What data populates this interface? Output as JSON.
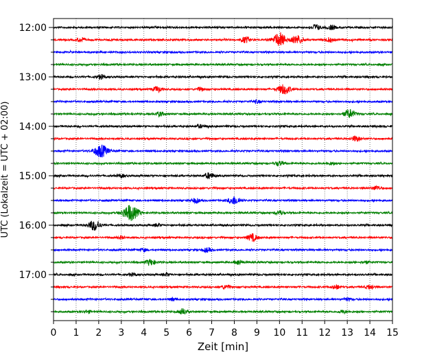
{
  "chart_data": {
    "type": "line",
    "title": "",
    "xlabel": "Zeit  [min]",
    "ylabel": "UTC (Lokalzeit = UTC + 02:00)",
    "xlim": [
      0,
      15
    ],
    "x_ticks": [
      "0",
      "1",
      "2",
      "3",
      "4",
      "5",
      "6",
      "7",
      "8",
      "9",
      "10",
      "11",
      "12",
      "13",
      "14",
      "15"
    ],
    "y_ticks": [
      "12:00",
      "13:00",
      "14:00",
      "15:00",
      "16:00",
      "17:00"
    ],
    "trace_interval_minutes": 15,
    "grid": "vertical dotted at each minute",
    "colors": [
      "#000000",
      "#ff0000",
      "#0000ff",
      "#008000"
    ],
    "series": [
      {
        "start": "12:00",
        "color": "#000000",
        "events": [
          {
            "t": 11.6,
            "amp": 4
          },
          {
            "t": 12.3,
            "amp": 3
          }
        ]
      },
      {
        "start": "12:15",
        "color": "#ff0000",
        "events": [
          {
            "t": 1.2,
            "amp": 3
          },
          {
            "t": 8.5,
            "amp": 4
          },
          {
            "t": 10.0,
            "amp": 9
          },
          {
            "t": 10.8,
            "amp": 6
          },
          {
            "t": 12.2,
            "amp": 3
          }
        ]
      },
      {
        "start": "12:30",
        "color": "#0000ff",
        "events": []
      },
      {
        "start": "12:45",
        "color": "#008000",
        "events": []
      },
      {
        "start": "13:00",
        "color": "#000000",
        "events": [
          {
            "t": 2.1,
            "amp": 3
          }
        ]
      },
      {
        "start": "13:15",
        "color": "#ff0000",
        "events": [
          {
            "t": 4.6,
            "amp": 4
          },
          {
            "t": 6.5,
            "amp": 2
          },
          {
            "t": 10.2,
            "amp": 7
          }
        ]
      },
      {
        "start": "13:30",
        "color": "#0000ff",
        "events": [
          {
            "t": 9.0,
            "amp": 2
          }
        ]
      },
      {
        "start": "13:45",
        "color": "#008000",
        "events": [
          {
            "t": 4.7,
            "amp": 3
          },
          {
            "t": 13.1,
            "amp": 6
          }
        ]
      },
      {
        "start": "14:00",
        "color": "#000000",
        "events": [
          {
            "t": 6.5,
            "amp": 2
          }
        ]
      },
      {
        "start": "14:15",
        "color": "#ff0000",
        "events": [
          {
            "t": 13.4,
            "amp": 4
          }
        ]
      },
      {
        "start": "14:30",
        "color": "#0000ff",
        "events": [
          {
            "t": 2.1,
            "amp": 9
          }
        ]
      },
      {
        "start": "14:45",
        "color": "#008000",
        "events": [
          {
            "t": 10.0,
            "amp": 3
          },
          {
            "t": 12.3,
            "amp": 2
          }
        ]
      },
      {
        "start": "15:00",
        "color": "#000000",
        "events": [
          {
            "t": 3.0,
            "amp": 2
          },
          {
            "t": 6.9,
            "amp": 4
          }
        ]
      },
      {
        "start": "15:15",
        "color": "#ff0000",
        "events": [
          {
            "t": 14.3,
            "amp": 3
          }
        ]
      },
      {
        "start": "15:30",
        "color": "#0000ff",
        "events": [
          {
            "t": 6.3,
            "amp": 3
          },
          {
            "t": 8.0,
            "amp": 6
          }
        ]
      },
      {
        "start": "15:45",
        "color": "#008000",
        "events": [
          {
            "t": 3.4,
            "amp": 11
          },
          {
            "t": 10.0,
            "amp": 3
          }
        ]
      },
      {
        "start": "16:00",
        "color": "#000000",
        "events": [
          {
            "t": 1.8,
            "amp": 7
          },
          {
            "t": 4.6,
            "amp": 2
          }
        ]
      },
      {
        "start": "16:15",
        "color": "#ff0000",
        "events": [
          {
            "t": 3.0,
            "amp": 2
          },
          {
            "t": 8.8,
            "amp": 5
          }
        ]
      },
      {
        "start": "16:30",
        "color": "#0000ff",
        "events": [
          {
            "t": 4.0,
            "amp": 2
          },
          {
            "t": 6.8,
            "amp": 3
          }
        ]
      },
      {
        "start": "16:45",
        "color": "#008000",
        "events": [
          {
            "t": 4.3,
            "amp": 4
          },
          {
            "t": 8.2,
            "amp": 3
          },
          {
            "t": 13.8,
            "amp": 2
          }
        ]
      },
      {
        "start": "17:00",
        "color": "#000000",
        "events": [
          {
            "t": 3.5,
            "amp": 2
          },
          {
            "t": 5.0,
            "amp": 2
          }
        ]
      },
      {
        "start": "17:15",
        "color": "#ff0000",
        "events": [
          {
            "t": 7.6,
            "amp": 3
          },
          {
            "t": 12.5,
            "amp": 3
          },
          {
            "t": 14.0,
            "amp": 3
          }
        ]
      },
      {
        "start": "17:30",
        "color": "#0000ff",
        "events": [
          {
            "t": 5.3,
            "amp": 2
          },
          {
            "t": 13.0,
            "amp": 2
          }
        ]
      },
      {
        "start": "17:45",
        "color": "#008000",
        "events": [
          {
            "t": 1.5,
            "amp": 2
          },
          {
            "t": 5.7,
            "amp": 4
          },
          {
            "t": 12.8,
            "amp": 2
          }
        ]
      }
    ]
  }
}
